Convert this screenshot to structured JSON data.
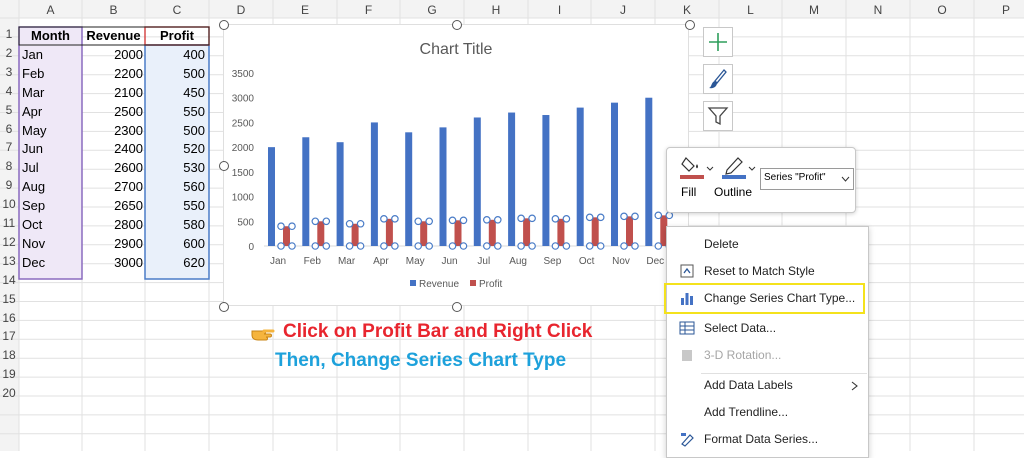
{
  "columns": [
    "A",
    "B",
    "C",
    "D",
    "E",
    "F",
    "G",
    "H",
    "I",
    "J",
    "K",
    "L",
    "M",
    "N",
    "O",
    "P"
  ],
  "rows": [
    "1",
    "2",
    "3",
    "4",
    "5",
    "6",
    "7",
    "8",
    "9",
    "10",
    "11",
    "12",
    "13",
    "14",
    "15",
    "16",
    "17",
    "18",
    "19",
    "20"
  ],
  "table": {
    "headers": [
      "Month",
      "Revenue",
      "Profit"
    ],
    "data": [
      {
        "month": "Jan",
        "revenue": "2000",
        "profit": "400"
      },
      {
        "month": "Feb",
        "revenue": "2200",
        "profit": "500"
      },
      {
        "month": "Mar",
        "revenue": "2100",
        "profit": "450"
      },
      {
        "month": "Apr",
        "revenue": "2500",
        "profit": "550"
      },
      {
        "month": "May",
        "revenue": "2300",
        "profit": "500"
      },
      {
        "month": "Jun",
        "revenue": "2400",
        "profit": "520"
      },
      {
        "month": "Jul",
        "revenue": "2600",
        "profit": "530"
      },
      {
        "month": "Aug",
        "revenue": "2700",
        "profit": "560"
      },
      {
        "month": "Sep",
        "revenue": "2650",
        "profit": "550"
      },
      {
        "month": "Oct",
        "revenue": "2800",
        "profit": "580"
      },
      {
        "month": "Nov",
        "revenue": "2900",
        "profit": "600"
      },
      {
        "month": "Dec",
        "revenue": "3000",
        "profit": "620"
      }
    ]
  },
  "chart_data": {
    "type": "bar",
    "title": "Chart Title",
    "categories": [
      "Jan",
      "Feb",
      "Mar",
      "Apr",
      "May",
      "Jun",
      "Jul",
      "Aug",
      "Sep",
      "Oct",
      "Nov",
      "Dec"
    ],
    "series": [
      {
        "name": "Revenue",
        "values": [
          2000,
          2200,
          2100,
          2500,
          2300,
          2400,
          2600,
          2700,
          2650,
          2800,
          2900,
          3000
        ],
        "color": "#4472c4"
      },
      {
        "name": "Profit",
        "values": [
          400,
          500,
          450,
          550,
          500,
          520,
          530,
          560,
          550,
          580,
          600,
          620
        ],
        "color": "#c0504d"
      }
    ],
    "ylim": [
      0,
      3500
    ],
    "yticks": [
      "0",
      "500",
      "1000",
      "1500",
      "2000",
      "2500",
      "3000",
      "3500"
    ],
    "legend_position": "bottom",
    "grid": false
  },
  "mini_toolbar": {
    "fill_label": "Fill",
    "outline_label": "Outline",
    "series_select": "Series \"Profit\""
  },
  "context_menu": {
    "items": [
      {
        "label": "Delete",
        "icon": "",
        "enabled": true
      },
      {
        "label": "Reset to Match Style",
        "icon": "reset-style-icon",
        "enabled": true
      },
      {
        "label": "Change Series Chart Type...",
        "icon": "chart-type-icon",
        "enabled": true
      },
      {
        "label": "Select Data...",
        "icon": "select-data-icon",
        "enabled": true
      },
      {
        "label": "3-D Rotation...",
        "icon": "rotation-3d-icon",
        "enabled": false
      },
      {
        "label": "Add Data Labels",
        "icon": "",
        "enabled": true
      },
      {
        "label": "Add Trendline...",
        "icon": "",
        "enabled": true
      },
      {
        "label": "Format Data Series...",
        "icon": "format-series-icon",
        "enabled": true
      }
    ]
  },
  "annotation": {
    "line1": "Click on Profit Bar and Right Click",
    "line2": "Then, Change Series Chart Type"
  },
  "colors": {
    "accent_red": "#e8252e",
    "accent_blue": "#1da1db",
    "highlight": "#f4e21c",
    "revenue": "#4472c4",
    "profit": "#c0504d"
  }
}
